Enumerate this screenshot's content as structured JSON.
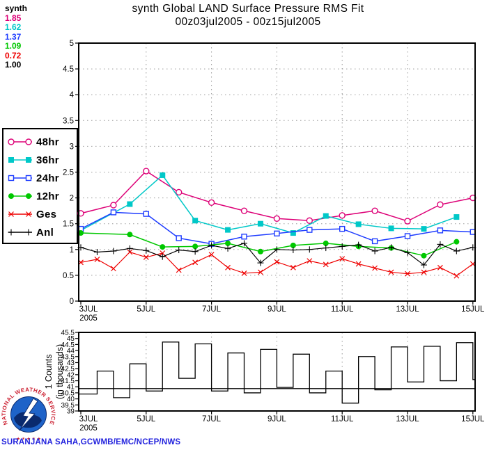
{
  "header": {
    "title_line1": "synth Global LAND Surface Pressure RMS Fit",
    "title_line2": "00z03jul2005 - 00z15jul2005"
  },
  "stats": {
    "label": "synth",
    "values": [
      {
        "text": "1.85",
        "series": "48hr"
      },
      {
        "text": "1.62",
        "series": "36hr"
      },
      {
        "text": "1.37",
        "series": "24hr"
      },
      {
        "text": "1.09",
        "series": "12hr"
      },
      {
        "text": "0.72",
        "series": "Ges"
      },
      {
        "text": "1.00",
        "series": "Anl"
      }
    ]
  },
  "footer": {
    "attribution": "SURANJANA SAHA,GCWMB/EMC/NCEP/NWS",
    "logo_text": "NATIONAL WEATHER SERVICE",
    "logo_stars": "★ ✶ ★ ✶ ★"
  },
  "colors": {
    "grid": "#999999",
    "axis": "#000000",
    "attribution_blue": "#2222dd",
    "logo_red": "#cc2233",
    "logo_blue": "#1e63c8",
    "logo_navy": "#0a2a6e"
  },
  "chart_data": [
    {
      "type": "line",
      "title": "synth Global LAND Surface Pressure RMS Fit",
      "subtitle": "00z03jul2005 - 00z15jul2005",
      "xlabel": "",
      "ylabel": "",
      "ylim": [
        0,
        5
      ],
      "ytick_labels": [
        "0",
        "0.5",
        "1",
        "1.5",
        "2",
        "2.5",
        "3",
        "3.5",
        "4",
        "4.5",
        "5"
      ],
      "xlim": [
        3,
        15
      ],
      "grid": "dotted",
      "grid_days": [
        5,
        7,
        9,
        11,
        13
      ],
      "legend_position": "left",
      "xticks": [
        {
          "day": 3,
          "label": "3JUL",
          "sublabel": "2005"
        },
        {
          "day": 5,
          "label": "5JUL"
        },
        {
          "day": 7,
          "label": "7JUL"
        },
        {
          "day": 9,
          "label": "9JUL"
        },
        {
          "day": 11,
          "label": "11JUL"
        },
        {
          "day": 13,
          "label": "13JUL"
        },
        {
          "day": 15,
          "label": "15JUL"
        }
      ],
      "series": [
        {
          "name": "48hr",
          "color": "#dd0077",
          "marker": "circle-open",
          "x": [
            3,
            4,
            5,
            6,
            7,
            8,
            9,
            10,
            11,
            12,
            13,
            14,
            15
          ],
          "values": [
            1.7,
            1.86,
            2.52,
            2.11,
            1.91,
            1.75,
            1.6,
            1.56,
            1.66,
            1.75,
            1.55,
            1.87,
            2.0
          ]
        },
        {
          "name": "36hr",
          "color": "#00c8c8",
          "marker": "square-filled",
          "x": [
            3,
            4.5,
            5.5,
            6.5,
            7.5,
            8.5,
            9.5,
            10.5,
            11.5,
            12.5,
            13.5,
            14.5
          ],
          "values": [
            1.37,
            1.88,
            2.44,
            1.56,
            1.38,
            1.5,
            1.32,
            1.65,
            1.49,
            1.41,
            1.4,
            1.63
          ]
        },
        {
          "name": "24hr",
          "color": "#1e3cff",
          "marker": "square-open",
          "x": [
            3,
            4,
            5,
            6,
            7,
            8,
            9,
            10,
            11,
            12,
            13,
            14,
            15
          ],
          "values": [
            1.4,
            1.72,
            1.69,
            1.22,
            1.11,
            1.25,
            1.31,
            1.38,
            1.4,
            1.16,
            1.26,
            1.37,
            1.34
          ]
        },
        {
          "name": "12hr",
          "color": "#00c800",
          "marker": "circle-filled",
          "x": [
            3,
            4.5,
            5.5,
            6.5,
            7.5,
            8.5,
            9.5,
            10.5,
            11.5,
            12.5,
            13.5,
            14.5
          ],
          "values": [
            1.32,
            1.29,
            1.05,
            1.06,
            1.12,
            0.96,
            1.08,
            1.12,
            1.06,
            1.03,
            0.88,
            1.15
          ]
        },
        {
          "name": "Ges",
          "color": "#ee0000",
          "marker": "x",
          "x": [
            3,
            3.5,
            4,
            4.5,
            5,
            5.5,
            6,
            6.5,
            7,
            7.5,
            8,
            8.5,
            9,
            9.5,
            10,
            10.5,
            11,
            11.5,
            12,
            12.5,
            13,
            13.5,
            14,
            14.5,
            15
          ],
          "values": [
            0.75,
            0.81,
            0.63,
            0.95,
            0.85,
            0.93,
            0.6,
            0.75,
            0.9,
            0.65,
            0.54,
            0.56,
            0.76,
            0.65,
            0.78,
            0.71,
            0.82,
            0.72,
            0.64,
            0.56,
            0.53,
            0.56,
            0.65,
            0.49,
            0.72
          ]
        },
        {
          "name": "Anl",
          "color": "#000000",
          "marker": "plus",
          "x": [
            3,
            3.5,
            4,
            4.5,
            5,
            5.5,
            6,
            6.5,
            7,
            7.5,
            8,
            8.5,
            9,
            9.5,
            10,
            10.5,
            11,
            11.5,
            12,
            12.5,
            13,
            13.5,
            14,
            14.5,
            15
          ],
          "values": [
            1.04,
            0.95,
            0.97,
            1.02,
            0.98,
            0.86,
            0.99,
            0.96,
            1.08,
            1.02,
            1.12,
            0.74,
            1.0,
            0.99,
            1.0,
            1.03,
            1.06,
            1.09,
            0.97,
            1.04,
            0.94,
            0.7,
            1.1,
            0.97,
            1.04
          ]
        }
      ]
    },
    {
      "type": "step",
      "ylabel_line1": "1 Counts",
      "ylabel_line2": "(in thousands)",
      "ylim": [
        39,
        45.5
      ],
      "ytick_labels": [
        "39",
        "39.5",
        "40",
        "40.5",
        "41",
        "41.5",
        "42",
        "42.5",
        "43",
        "43.5",
        "44",
        "44.5",
        "45",
        "45.5"
      ],
      "reference_line": 40.85,
      "x_start": 3,
      "x_step": 0.5,
      "grid_days": [
        5,
        7,
        9,
        11,
        13
      ],
      "xticks": [
        {
          "day": 3,
          "label": "3JUL",
          "sublabel": "2005"
        },
        {
          "day": 5,
          "label": "5JUL"
        },
        {
          "day": 7,
          "label": "7JUL"
        },
        {
          "day": 9,
          "label": "9JUL"
        },
        {
          "day": 11,
          "label": "11JUL"
        },
        {
          "day": 13,
          "label": "13JUL"
        },
        {
          "day": 15,
          "label": "15JUL"
        }
      ],
      "values": [
        40.4,
        42.3,
        40.1,
        42.9,
        40.65,
        44.7,
        41.7,
        44.55,
        40.65,
        43.8,
        40.5,
        44.1,
        40.95,
        43.7,
        40.5,
        42.3,
        39.65,
        43.5,
        40.75,
        44.3,
        41.4,
        44.35,
        41.5,
        44.65,
        41.6
      ]
    }
  ]
}
